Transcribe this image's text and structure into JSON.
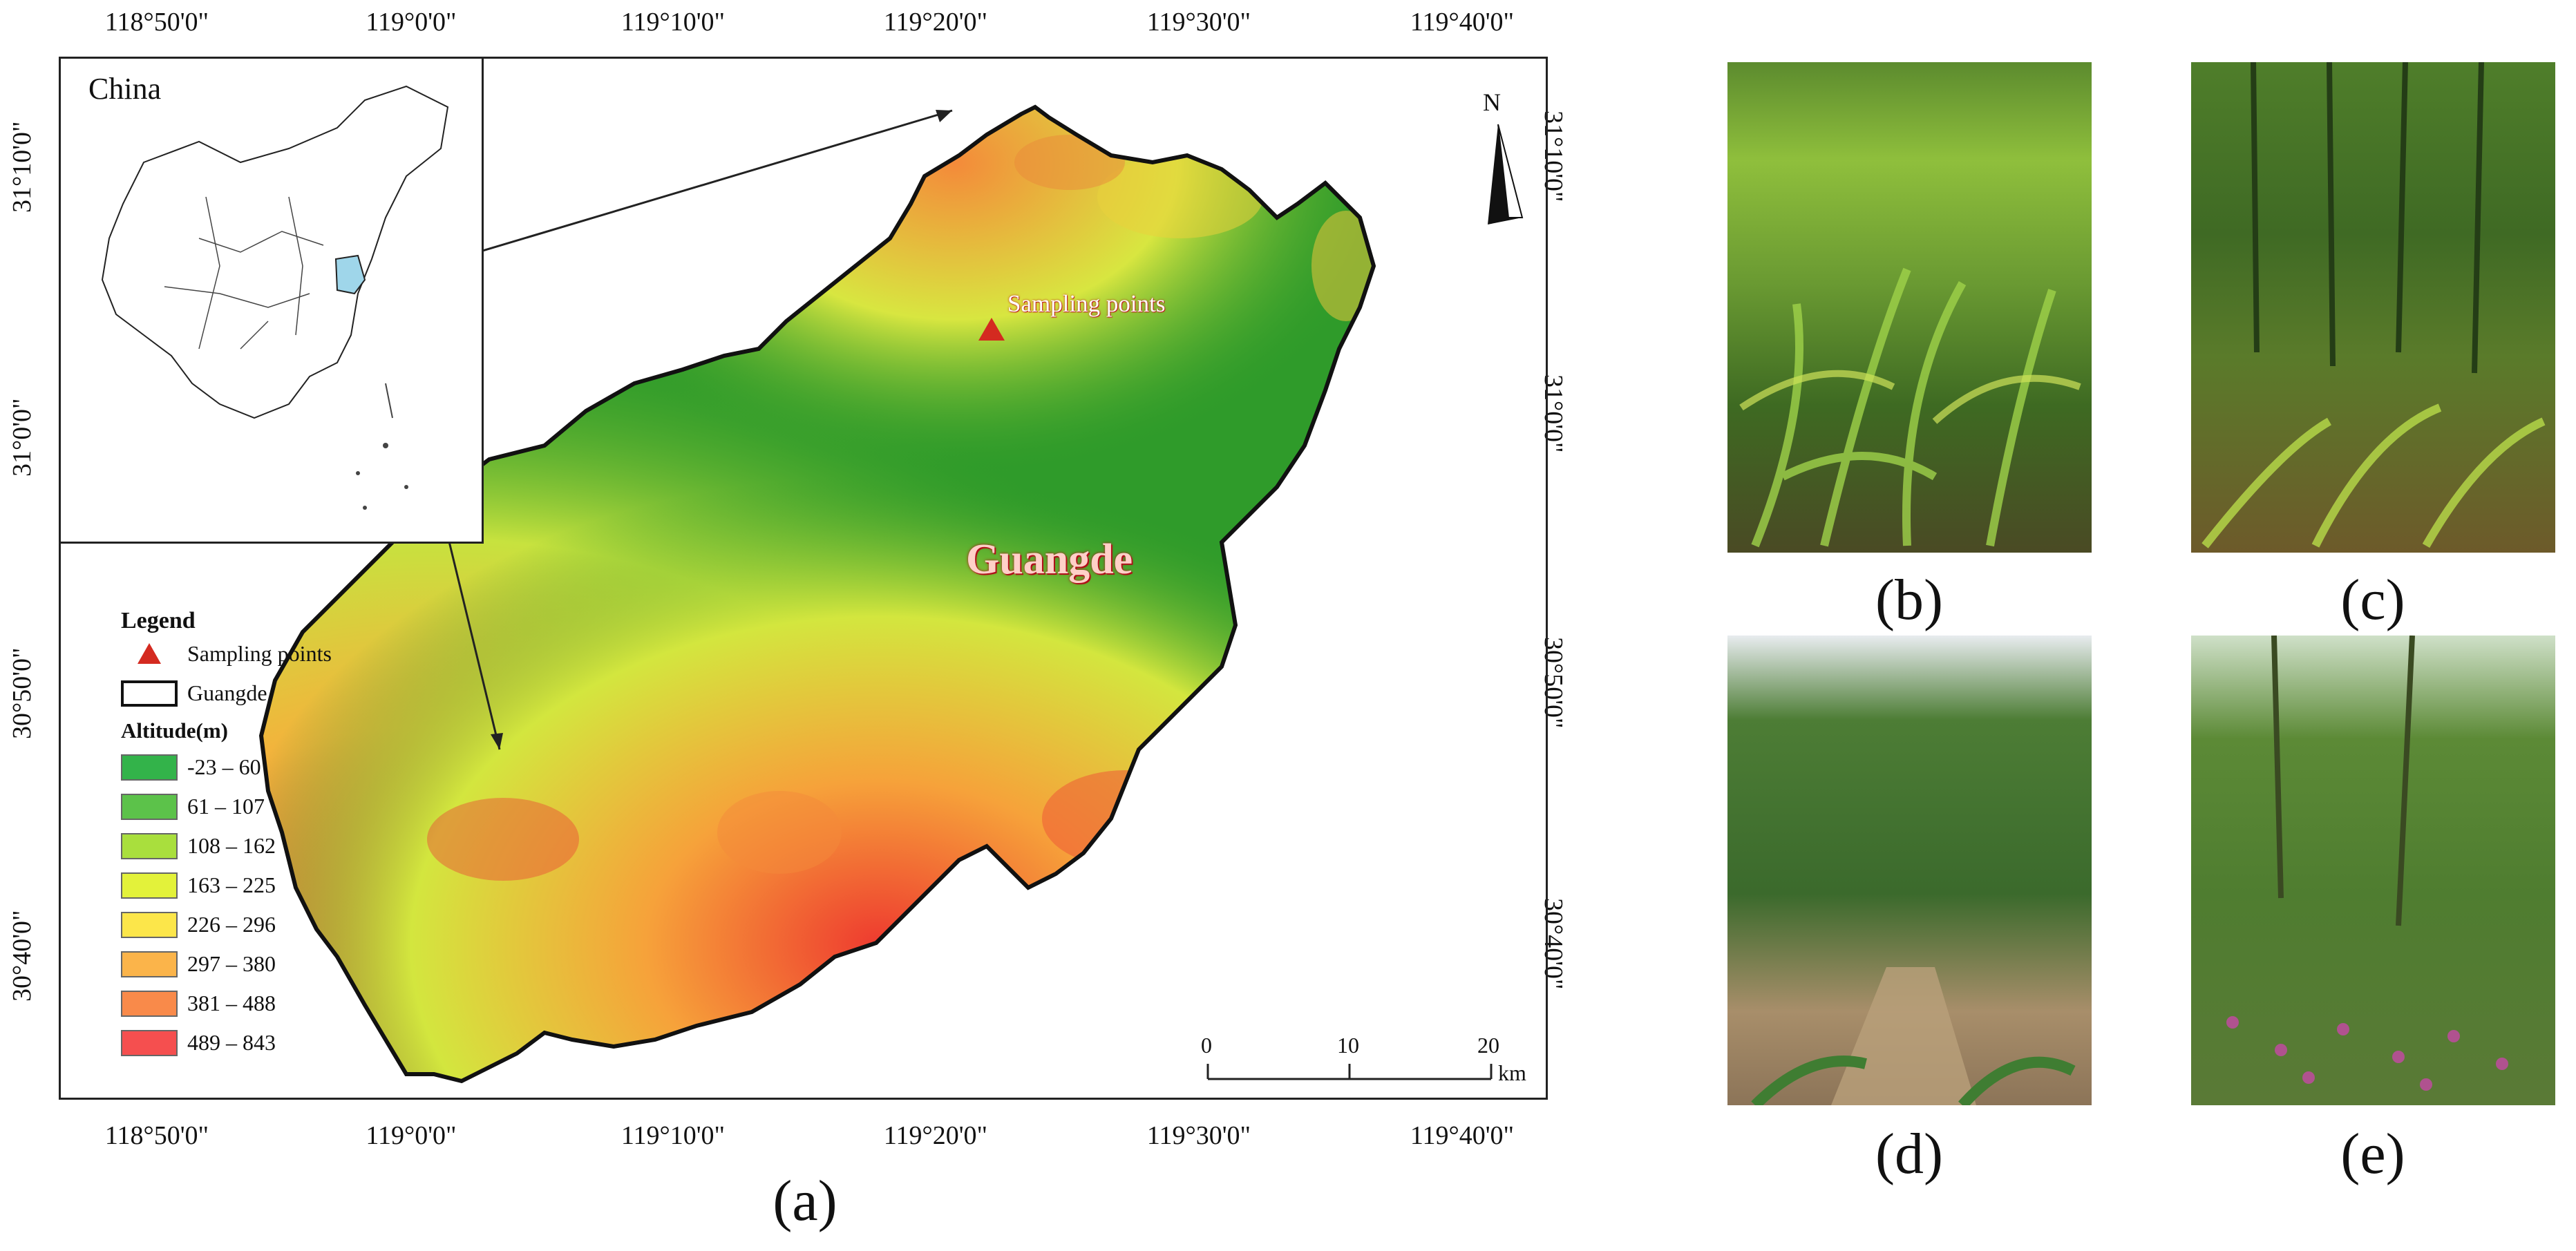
{
  "figure": {
    "panel_labels": [
      "(a)",
      "(b)",
      "(c)",
      "(d)",
      "(e)"
    ]
  },
  "map": {
    "longitude_ticks": [
      "118°50'0\"",
      "119°0'0\"",
      "119°10'0\"",
      "119°20'0\"",
      "119°30'0\"",
      "119°40'0\""
    ],
    "latitude_ticks": [
      "31°10'0\"",
      "31°0'0\"",
      "30°50'0\"",
      "30°40'0\""
    ],
    "inset_title": "China",
    "region_label": "Guangde",
    "sampling_label": "Sampling points",
    "north_label": "N",
    "scalebar": {
      "ticks": [
        "0",
        "10",
        "20"
      ],
      "unit": "km"
    }
  },
  "legend": {
    "title": "Legend",
    "sampling": "Sampling points",
    "boundary": "Guangde",
    "altitude_title": "Altitude(m)",
    "classes": [
      {
        "label": "-23 – 60",
        "color": "#33b34a"
      },
      {
        "label": "61 – 107",
        "color": "#5cc24a"
      },
      {
        "label": "108 – 162",
        "color": "#a9df3d"
      },
      {
        "label": "163 – 225",
        "color": "#e3f23a"
      },
      {
        "label": "226 – 296",
        "color": "#fce64a"
      },
      {
        "label": "297 – 380",
        "color": "#fbb44a"
      },
      {
        "label": "381 – 488",
        "color": "#f98a4a"
      },
      {
        "label": "489 – 843",
        "color": "#f54f4f"
      }
    ],
    "sampling_color": "#d42a20"
  }
}
